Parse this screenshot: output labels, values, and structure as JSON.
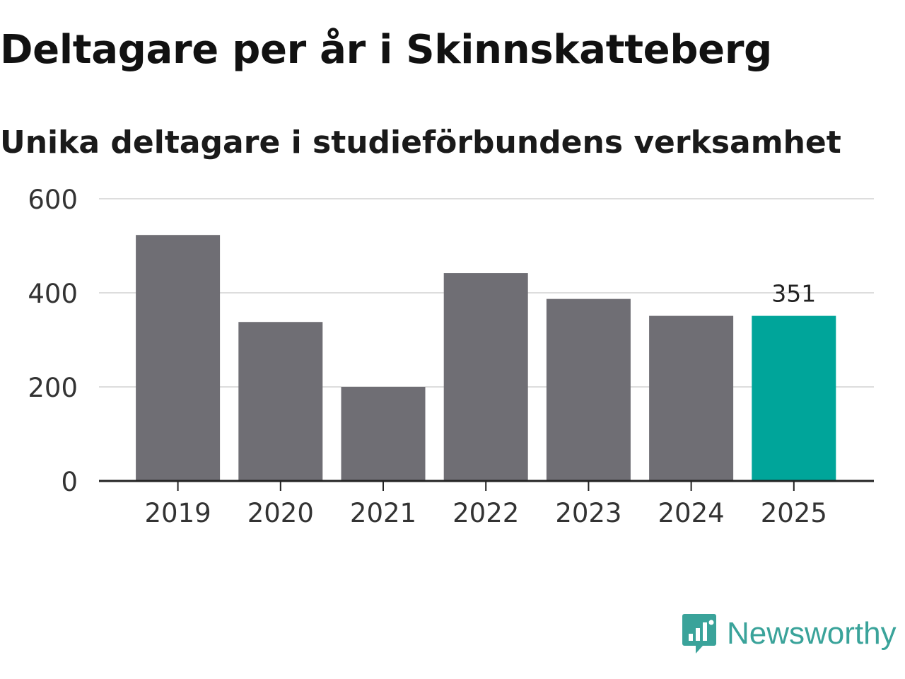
{
  "chart_data": {
    "type": "bar",
    "title": "Deltagare per år i Skinnskatteberg",
    "subtitle": "Unika deltagare i studieförbundens verksamhet",
    "categories": [
      "2019",
      "2020",
      "2021",
      "2022",
      "2023",
      "2024",
      "2025"
    ],
    "values": [
      523,
      338,
      200,
      442,
      387,
      351,
      351
    ],
    "highlight_index": 6,
    "data_labels": [
      null,
      null,
      null,
      null,
      null,
      null,
      "351"
    ],
    "yticks": [
      0,
      200,
      400,
      600
    ],
    "ylim": [
      0,
      600
    ],
    "xlabel": "",
    "ylabel": "",
    "grid": true,
    "colors": {
      "bar": "#6f6e74",
      "highlight": "#00a59a",
      "grid": "#dddddd",
      "axis": "#222222"
    }
  },
  "brand": {
    "name": "Newsworthy",
    "color": "#3aa39a"
  }
}
